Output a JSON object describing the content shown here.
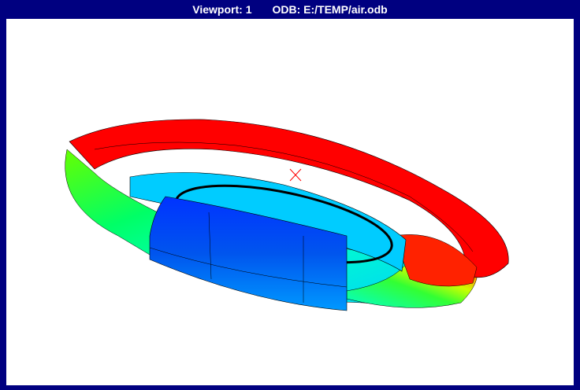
{
  "viewport": {
    "name": "Viewport: 1",
    "odb": "ODB: E:/TEMP/air.odb"
  }
}
